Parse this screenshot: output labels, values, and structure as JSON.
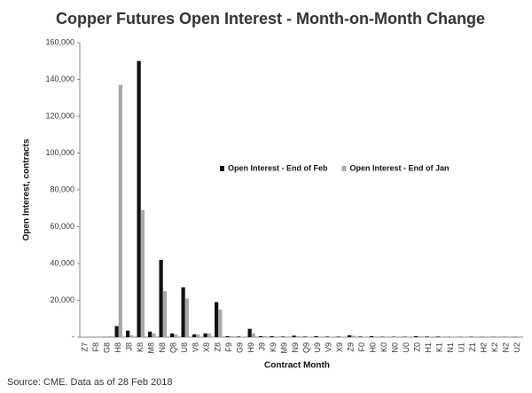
{
  "chart_data": {
    "type": "bar",
    "title": "Copper Futures Open Interest - Month-on-Month Change",
    "y_label": "Open Interest, contracts",
    "x_label": "Contract Month",
    "source": "Source: CME. Data as of 28 Feb 2018",
    "categories": [
      "Z7",
      "F8",
      "G8",
      "H8",
      "J8",
      "K8",
      "M8",
      "N8",
      "Q8",
      "U8",
      "V8",
      "X8",
      "Z8",
      "F9",
      "G9",
      "H9",
      "J9",
      "K9",
      "M9",
      "N9",
      "Q9",
      "U9",
      "V9",
      "X9",
      "Z9",
      "F0",
      "H0",
      "K0",
      "N0",
      "U0",
      "Z0",
      "H1",
      "K1",
      "N1",
      "U1",
      "Z1",
      "H2",
      "K2",
      "N2",
      "U2"
    ],
    "series": [
      {
        "name": "Open Interest - End of Feb",
        "color": "#111111",
        "values": [
          0,
          0,
          0,
          6000,
          3500,
          150000,
          3000,
          42000,
          2000,
          27000,
          1500,
          2000,
          19000,
          500,
          300,
          4500,
          500,
          500,
          300,
          800,
          300,
          500,
          300,
          300,
          1000,
          300,
          500,
          200,
          200,
          200,
          500,
          300,
          300,
          100,
          100,
          200,
          100,
          100,
          100,
          100
        ]
      },
      {
        "name": "Open Interest - End of Jan",
        "color": "#a8a8a8",
        "values": [
          0,
          0,
          500,
          137000,
          1000,
          69000,
          2000,
          25000,
          1500,
          21000,
          1500,
          2000,
          15000,
          500,
          200,
          2000,
          500,
          300,
          300,
          500,
          200,
          300,
          200,
          200,
          800,
          200,
          300,
          200,
          200,
          100,
          400,
          200,
          200,
          100,
          100,
          100,
          100,
          100,
          100,
          100
        ]
      }
    ],
    "ylim": [
      0,
      160000
    ],
    "yticks": [
      {
        "value": 0,
        "label": "-"
      },
      {
        "value": 20000,
        "label": "20,000"
      },
      {
        "value": 40000,
        "label": "40,000"
      },
      {
        "value": 60000,
        "label": "60,000"
      },
      {
        "value": 80000,
        "label": "80,000"
      },
      {
        "value": 100000,
        "label": "100,000"
      },
      {
        "value": 120000,
        "label": "120,000"
      },
      {
        "value": 140000,
        "label": "140,000"
      },
      {
        "value": 160000,
        "label": "160,000"
      }
    ],
    "grid": false,
    "legend": "right"
  }
}
